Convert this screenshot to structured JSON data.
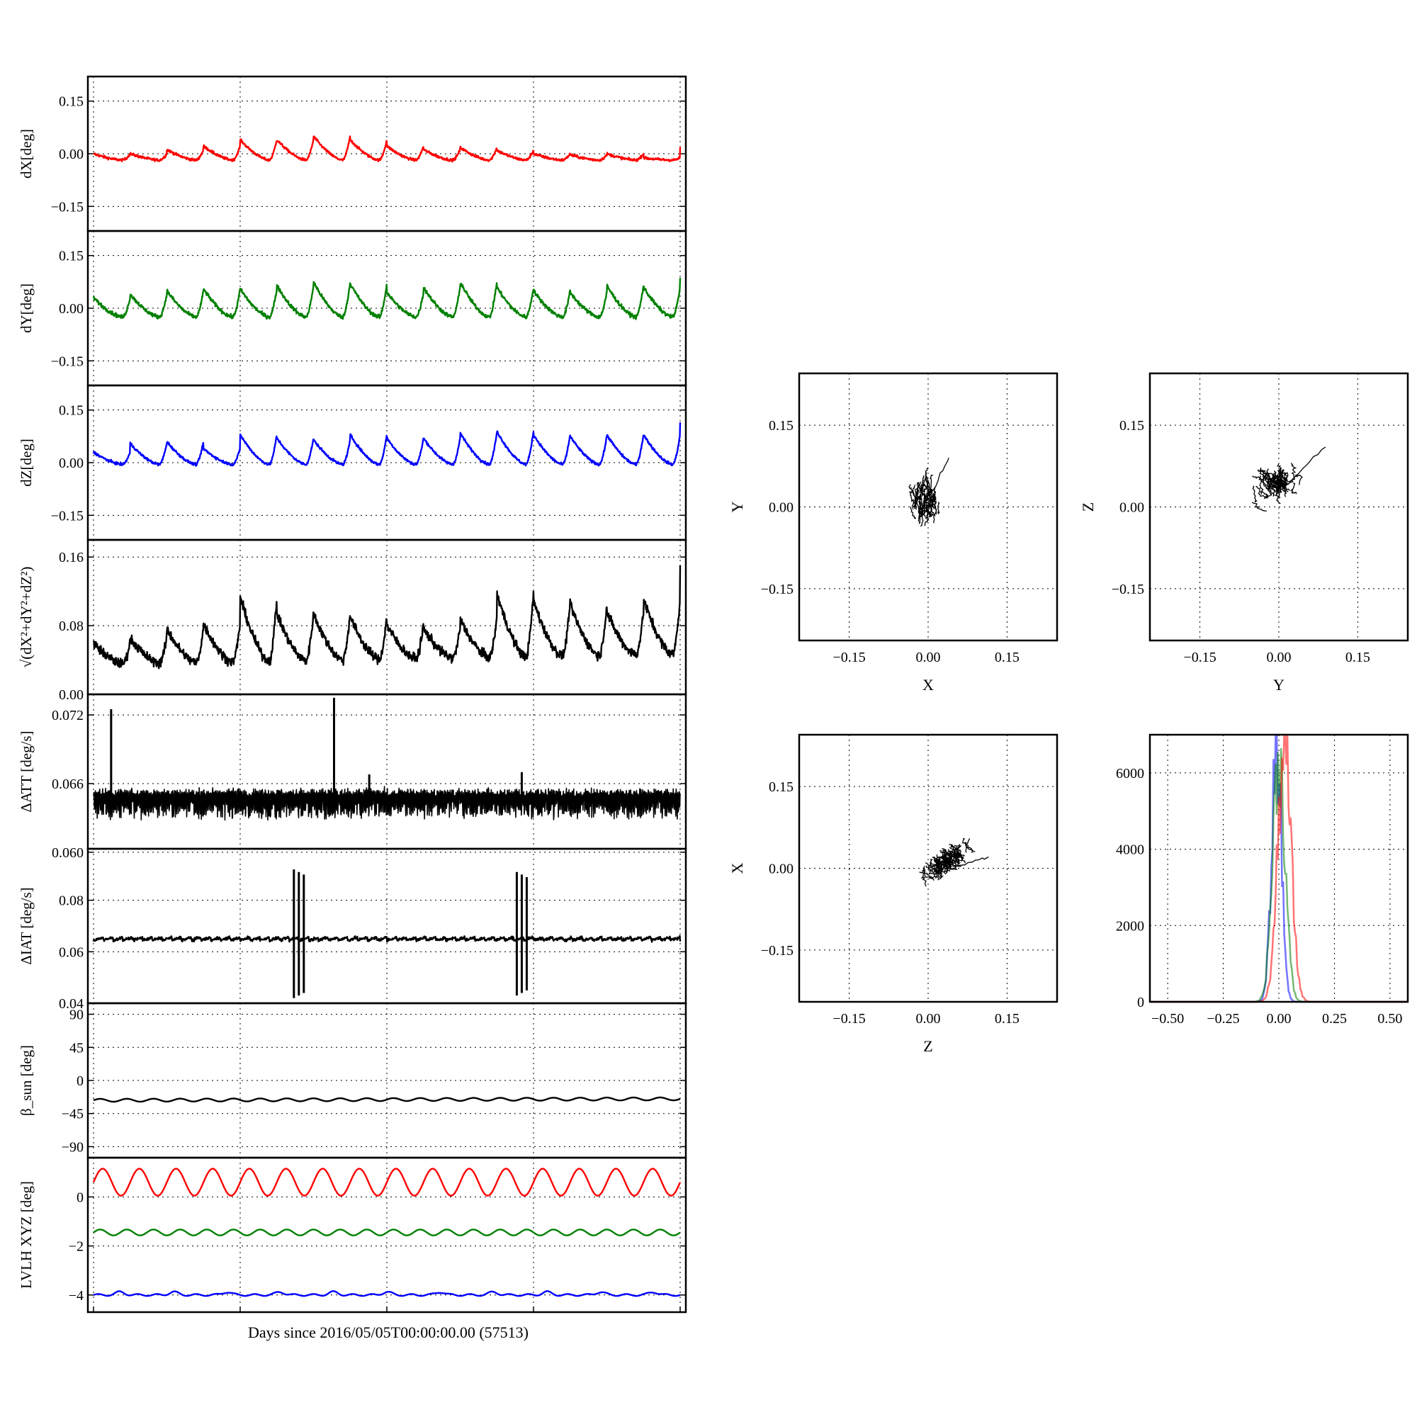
{
  "figure": {
    "xlabel": "Days since 2016/05/05T00:00:00.00 (57513)"
  },
  "colors": {
    "x": "#ff0000",
    "y": "#008000",
    "z": "#0000ff",
    "k": "#000000",
    "grid": "#000000"
  },
  "chart_data": [
    {
      "id": "dX",
      "type": "line",
      "ylabel": "dX[deg]",
      "yticks": [
        "0.15",
        "0.00",
        "−0.15"
      ],
      "ytick_values": [
        0.15,
        0.0,
        -0.15
      ],
      "ylim": [
        -0.22,
        0.22
      ],
      "series": [
        {
          "color": "x",
          "kind": "sawtooth",
          "base": -0.018,
          "amp": 0.025,
          "cycles": 16,
          "noise": 0.004,
          "drift": 0.0,
          "peaks": [
            0.0,
            0.0,
            0.012,
            0.022,
            0.04,
            0.04,
            0.05,
            0.04,
            0.022,
            0.012,
            0.018,
            0.01,
            0.0,
            -0.003,
            0.0,
            -0.012,
            0.02
          ]
        }
      ]
    },
    {
      "id": "dY",
      "type": "line",
      "ylabel": "dY[deg]",
      "yticks": [
        "0.15",
        "0.00",
        "−0.15"
      ],
      "ytick_values": [
        0.15,
        0.0,
        -0.15
      ],
      "ylim": [
        -0.22,
        0.22
      ],
      "series": [
        {
          "color": "y",
          "kind": "sawtooth",
          "base": -0.025,
          "amp": 0.05,
          "cycles": 16,
          "noise": 0.006,
          "drift": 0.0,
          "peaks": [
            0.03,
            0.04,
            0.05,
            0.055,
            0.055,
            0.065,
            0.075,
            0.07,
            0.045,
            0.06,
            0.075,
            0.06,
            0.05,
            0.045,
            0.065,
            0.06,
            0.09
          ]
        }
      ]
    },
    {
      "id": "dZ",
      "type": "line",
      "ylabel": "dZ[deg]",
      "yticks": [
        "0.15",
        "0.00",
        "−0.15"
      ],
      "ytick_values": [
        0.15,
        0.0,
        -0.15
      ],
      "ylim": [
        -0.22,
        0.22
      ],
      "series": [
        {
          "color": "z",
          "kind": "sawtooth",
          "base": -0.005,
          "amp": 0.05,
          "cycles": 16,
          "noise": 0.004,
          "drift": 0.0,
          "peaks": [
            0.03,
            0.055,
            0.06,
            0.04,
            0.08,
            0.07,
            0.065,
            0.08,
            0.07,
            0.07,
            0.085,
            0.09,
            0.08,
            0.075,
            0.08,
            0.08,
            0.115
          ]
        }
      ]
    },
    {
      "id": "mag",
      "type": "line",
      "ylabel": "√(dX²+dY²+dZ²)",
      "yticks": [
        "0.16",
        "0.08",
        "0.00"
      ],
      "ytick_values": [
        0.16,
        0.08,
        0.0
      ],
      "ylim": [
        0.0,
        0.18
      ],
      "series": [
        {
          "color": "k",
          "kind": "sawtooth",
          "base": 0.035,
          "amp": 0.035,
          "cycles": 16,
          "noise": 0.006,
          "drift": 0.012,
          "peaks": [
            0.06,
            0.065,
            0.075,
            0.08,
            0.11,
            0.09,
            0.09,
            0.085,
            0.075,
            0.07,
            0.08,
            0.11,
            0.1,
            0.095,
            0.085,
            0.1,
            0.14
          ]
        }
      ]
    },
    {
      "id": "datt",
      "type": "line",
      "ylabel": "ΔATT [deg/s]",
      "yticks": [
        "0.072",
        "0.066",
        "0.060"
      ],
      "ytick_values": [
        0.072,
        0.066,
        0.06
      ],
      "ylim": [
        0.0603,
        0.0738
      ],
      "series": [
        {
          "color": "k",
          "kind": "buzz",
          "base": 0.0645,
          "amp": 0.0012,
          "cycles": 400,
          "noise": 0.0004,
          "spikes": [
            [
              0.03,
              0.0725
            ],
            [
              0.41,
              0.0735
            ],
            [
              0.47,
              0.0668
            ],
            [
              0.73,
              0.067
            ]
          ]
        }
      ]
    },
    {
      "id": "diat",
      "type": "line",
      "ylabel": "ΔIAT [deg/s]",
      "yticks": [
        "0.08",
        "0.06",
        "0.04"
      ],
      "ytick_values": [
        0.08,
        0.06,
        0.04
      ],
      "ylim": [
        0.04,
        0.1
      ],
      "series": [
        {
          "color": "k",
          "kind": "flat",
          "base": 0.065,
          "amp": 0.0012,
          "cycles": 60,
          "noise": 0.0006,
          "bursts": [
            [
              0.35,
              0.042,
              0.092
            ],
            [
              0.73,
              0.043,
              0.091
            ]
          ]
        }
      ]
    },
    {
      "id": "beta",
      "type": "line",
      "ylabel": "β_sun [deg]",
      "yticks": [
        "90",
        "45",
        "0",
        "−45",
        "−90"
      ],
      "ytick_values": [
        90,
        45,
        0,
        -45,
        -90
      ],
      "ylim": [
        -105,
        105
      ],
      "series": [
        {
          "color": "k",
          "kind": "sine",
          "base": -27,
          "amp": 2.0,
          "cycles": 22,
          "noise": 0.0,
          "drift": 2.0
        }
      ]
    },
    {
      "id": "lvlh",
      "type": "line",
      "ylabel": "LVLH XYZ [deg]",
      "yticks": [
        "0",
        "−2",
        "−4"
      ],
      "ytick_values": [
        0,
        -2,
        -4
      ],
      "ylim": [
        -4.7,
        1.6
      ],
      "series": [
        {
          "color": "x",
          "kind": "sine",
          "base": 0.6,
          "amp": 0.55,
          "cycles": 16,
          "noise": 0.0,
          "drift": 0.0
        },
        {
          "color": "y",
          "kind": "sine",
          "base": -1.45,
          "amp": 0.12,
          "cycles": 22,
          "noise": 0.0,
          "drift": 0.0
        },
        {
          "color": "z",
          "kind": "bumps",
          "base": -4.0,
          "amp": 0.12,
          "cycles": 11,
          "noise": 0.0,
          "drift": 0.0
        }
      ]
    },
    {
      "id": "xy",
      "type": "scatter",
      "xlabel": "X",
      "ylabel": "Y",
      "ticks": [
        "−0.15",
        "0.00",
        "0.15"
      ],
      "tick_values": [
        -0.15,
        0.0,
        0.15
      ],
      "lim": [
        -0.245,
        0.245
      ],
      "cloud": {
        "cx": -0.005,
        "cy": 0.0,
        "sx": 0.025,
        "sy": 0.04,
        "rot": 0.0,
        "tail_x": 0.04,
        "tail_y": 0.09
      }
    },
    {
      "id": "yz",
      "type": "scatter",
      "xlabel": "Y",
      "ylabel": "Z",
      "ticks": [
        "−0.15",
        "0.00",
        "0.15"
      ],
      "tick_values": [
        -0.15,
        0.0,
        0.15
      ],
      "lim": [
        -0.245,
        0.245
      ],
      "cloud": {
        "cx": 0.0,
        "cy": 0.03,
        "sx": 0.04,
        "sy": 0.025,
        "rot": 0.35,
        "tail_x": 0.09,
        "tail_y": 0.11
      }
    },
    {
      "id": "zx",
      "type": "scatter",
      "xlabel": "Z",
      "ylabel": "X",
      "ticks": [
        "−0.15",
        "0.00",
        "0.15"
      ],
      "tick_values": [
        -0.15,
        0.0,
        0.15
      ],
      "lim": [
        -0.245,
        0.245
      ],
      "cloud": {
        "cx": 0.04,
        "cy": 0.0,
        "sx": 0.045,
        "sy": 0.012,
        "rot": 0.5,
        "tail_x": 0.115,
        "tail_y": 0.02
      }
    },
    {
      "id": "hist",
      "type": "line",
      "xticks": [
        "−0.50",
        "−0.25",
        "0.00",
        "0.25",
        "0.50"
      ],
      "xtick_values": [
        -0.5,
        -0.25,
        0.0,
        0.25,
        0.5
      ],
      "yticks": [
        "6000",
        "4000",
        "2000",
        "0"
      ],
      "ytick_values": [
        6000,
        4000,
        2000,
        0
      ],
      "xlim": [
        -0.58,
        0.58
      ],
      "ylim": [
        0,
        7000
      ],
      "series": [
        {
          "color": "z",
          "center": -0.01,
          "width": 0.022,
          "peak": 6600
        },
        {
          "color": "y",
          "center": 0.0,
          "width": 0.028,
          "peak": 6400
        },
        {
          "color": "x",
          "center": 0.025,
          "width": 0.03,
          "peak": 6700
        }
      ]
    }
  ]
}
